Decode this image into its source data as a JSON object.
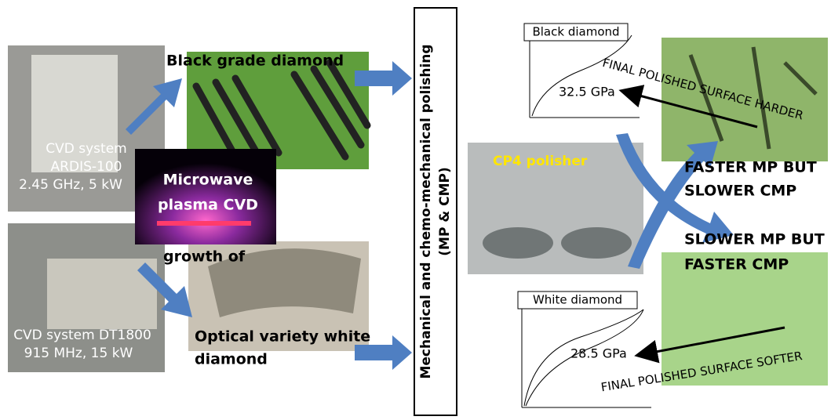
{
  "systems": [
    {
      "lines": [
        "CVD system",
        "ARDIS-100",
        "2.45 GHz, 5 kW"
      ]
    },
    {
      "lines": [
        "CVD system  DT1800",
        "915 MHz, 15 kW"
      ]
    }
  ],
  "plasma": {
    "lines": [
      "Microwave",
      "plasma CVD"
    ],
    "caption": "growth of"
  },
  "products": {
    "black": "Black grade diamond",
    "white": [
      "Optical variety white",
      "diamond"
    ]
  },
  "process": {
    "lines": [
      "Mechanical and chemo-mechanical polishing",
      "(MP & CMP)"
    ],
    "polisher": "CP4 polisher"
  },
  "hardness": {
    "black": {
      "title": "Black diamond",
      "value": "32.5 GPa"
    },
    "white": {
      "title": "White diamond",
      "value": "28.5 GPa"
    }
  },
  "surfaces": {
    "harder": "FINAL POLISHED SURFACE HARDER",
    "softer": "FINAL POLISHED SURFACE SOFTER"
  },
  "notes": {
    "black": [
      "FASTER MP BUT",
      "SLOWER CMP"
    ],
    "white": [
      "SLOWER MP BUT",
      "FASTER CMP"
    ]
  }
}
